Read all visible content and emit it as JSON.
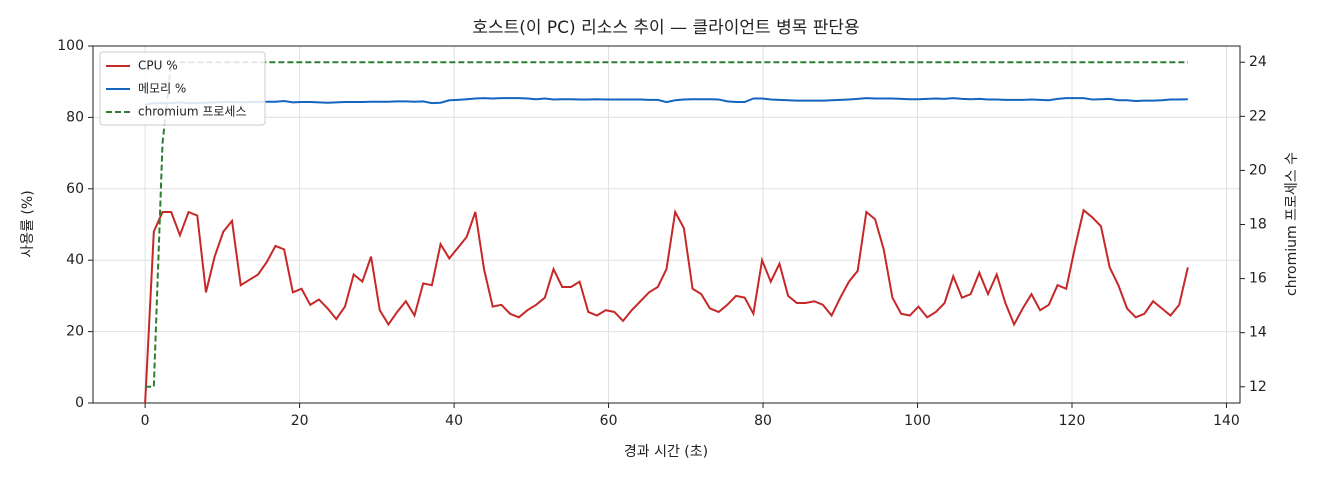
{
  "chart_data": {
    "type": "line",
    "title": "호스트(이 PC) 리소스 추이 — 클라이언트 병목 판단용",
    "xlabel": "경과 시간 (초)",
    "ylabel": "사용률 (%)",
    "y2label": "chromium 프로세스 수",
    "x": [
      0,
      1.125,
      2.25,
      3.375,
      4.5,
      5.625,
      6.75,
      7.875,
      9,
      10.125,
      11.25,
      12.375,
      13.5,
      14.625,
      15.75,
      16.875,
      18,
      19.125,
      20.25,
      21.375,
      22.5,
      23.625,
      24.75,
      25.875,
      27,
      28.125,
      29.25,
      30.375,
      31.5,
      32.625,
      33.75,
      34.875,
      36,
      37.125,
      38.25,
      39.375,
      40.5,
      41.625,
      42.75,
      43.875,
      45,
      46.125,
      47.25,
      48.375,
      49.5,
      50.625,
      51.75,
      52.875,
      54,
      55.125,
      56.25,
      57.375,
      58.5,
      59.625,
      60.75,
      61.875,
      63,
      64.125,
      65.25,
      66.375,
      67.5,
      68.625,
      69.75,
      70.875,
      72,
      73.125,
      74.25,
      75.375,
      76.5,
      77.625,
      78.75,
      79.875,
      81,
      82.125,
      83.25,
      84.375,
      85.5,
      86.625,
      87.75,
      88.875,
      90,
      91.125,
      92.25,
      93.375,
      94.5,
      95.625,
      96.75,
      97.875,
      99,
      100.125,
      101.25,
      102.375,
      103.5,
      104.625,
      105.75,
      106.875,
      108,
      109.125,
      110.25,
      111.375,
      112.5,
      113.625,
      114.75,
      115.875,
      117,
      118.125,
      119.25,
      120.375,
      121.5,
      122.625,
      123.75,
      124.875,
      126,
      127.125,
      128.25,
      129.375,
      130.5,
      131.625,
      132.75,
      133.875,
      135
    ],
    "series": [
      {
        "name": "CPU %",
        "color": "#c62828",
        "values": [
          0,
          48,
          53.5,
          53.5,
          47,
          53.5,
          52.5,
          31,
          41,
          48,
          51,
          33,
          34.5,
          36,
          39.5,
          44,
          43,
          31,
          32,
          27.5,
          29,
          26.5,
          23.5,
          27,
          36,
          34,
          41,
          26,
          22,
          25.5,
          28.5,
          24.5,
          33.5,
          33,
          44.5,
          40.5,
          43.5,
          46.5,
          53.5,
          37.5,
          27,
          27.5,
          25,
          24,
          26,
          27.5,
          29.5,
          37.5,
          32.5,
          32.5,
          34,
          25.5,
          24.5,
          26,
          25.5,
          23,
          26,
          28.5,
          31,
          32.5,
          37.5,
          53.5,
          49,
          32,
          30.5,
          26.5,
          25.5,
          27.5,
          30,
          29.5,
          25,
          40,
          34,
          39,
          30,
          28,
          28,
          28.5,
          27.5,
          24.5,
          29.5,
          34,
          37,
          53.5,
          51.5,
          43,
          29.5,
          25,
          24.5,
          27,
          24,
          25.5,
          28,
          35.5,
          29.5,
          30.5,
          36.5,
          30.5,
          36,
          28,
          22,
          26.5,
          30.5,
          26,
          27.5,
          33,
          32,
          43.5,
          54,
          52,
          49.5,
          38,
          33,
          26.5,
          24,
          25,
          28.5,
          26.5,
          24.5,
          27.5,
          38
        ]
      },
      {
        "name": "메모리 %",
        "color": "#1565c0",
        "values": [
          83.5,
          84,
          84,
          84,
          84.2,
          84,
          84,
          84.1,
          84.2,
          84.3,
          84.3,
          84.2,
          84.3,
          84.4,
          84.4,
          84.4,
          84.6,
          84.2,
          84.3,
          84.3,
          84.2,
          84.1,
          84.2,
          84.3,
          84.3,
          84.3,
          84.4,
          84.4,
          84.4,
          84.5,
          84.5,
          84.4,
          84.5,
          84,
          84.1,
          84.8,
          84.9,
          85.1,
          85.3,
          85.4,
          85.3,
          85.4,
          85.4,
          85.4,
          85.3,
          85.1,
          85.3,
          85,
          85.1,
          85.1,
          85,
          85,
          85.1,
          85,
          85,
          85,
          85,
          85,
          84.9,
          84.9,
          84.3,
          84.8,
          85,
          85.1,
          85.1,
          85.1,
          85,
          84.5,
          84.3,
          84.3,
          85.3,
          85.3,
          85,
          84.9,
          84.8,
          84.7,
          84.7,
          84.7,
          84.7,
          84.8,
          84.9,
          85,
          85.2,
          85.4,
          85.3,
          85.3,
          85.3,
          85.2,
          85.1,
          85.1,
          85.2,
          85.3,
          85.2,
          85.4,
          85.2,
          85.1,
          85.2,
          85,
          85,
          84.9,
          84.9,
          84.9,
          85,
          84.9,
          84.8,
          85.2,
          85.4,
          85.4,
          85.4,
          85,
          85.1,
          85.2,
          84.8,
          84.8,
          84.6,
          84.7,
          84.7,
          84.8,
          85,
          85,
          85.1
        ]
      },
      {
        "name": "chromium 프로세스",
        "color": "#2e7d32",
        "linestyle": "dashed",
        "axis": "y2",
        "values": [
          12,
          12,
          21,
          24,
          24,
          24,
          24,
          24,
          24,
          24,
          24,
          24,
          24,
          24,
          24,
          24,
          24,
          24,
          24,
          24,
          24,
          24,
          24,
          24,
          24,
          24,
          24,
          24,
          24,
          24,
          24,
          24,
          24,
          24,
          24,
          24,
          24,
          24,
          24,
          24,
          24,
          24,
          24,
          24,
          24,
          24,
          24,
          24,
          24,
          24,
          24,
          24,
          24,
          24,
          24,
          24,
          24,
          24,
          24,
          24,
          24,
          24,
          24,
          24,
          24,
          24,
          24,
          24,
          24,
          24,
          24,
          24,
          24,
          24,
          24,
          24,
          24,
          24,
          24,
          24,
          24,
          24,
          24,
          24,
          24,
          24,
          24,
          24,
          24,
          24,
          24,
          24,
          24,
          24,
          24,
          24,
          24,
          24,
          24,
          24,
          24,
          24,
          24,
          24,
          24,
          24,
          24,
          24,
          24,
          24,
          24,
          24,
          24,
          24,
          24,
          24,
          24,
          24,
          24,
          24,
          24
        ]
      }
    ],
    "xlim": [
      -6.75,
      141.75
    ],
    "xticks": [
      0,
      20,
      40,
      60,
      80,
      100,
      120,
      140
    ],
    "ylim": [
      0,
      100
    ],
    "yticks": [
      0,
      20,
      40,
      60,
      80,
      100
    ],
    "y2lim": [
      11.4,
      24.6
    ],
    "y2ticks": [
      12,
      14,
      16,
      18,
      20,
      22,
      24
    ],
    "grid": true,
    "legend": "upper-left"
  }
}
